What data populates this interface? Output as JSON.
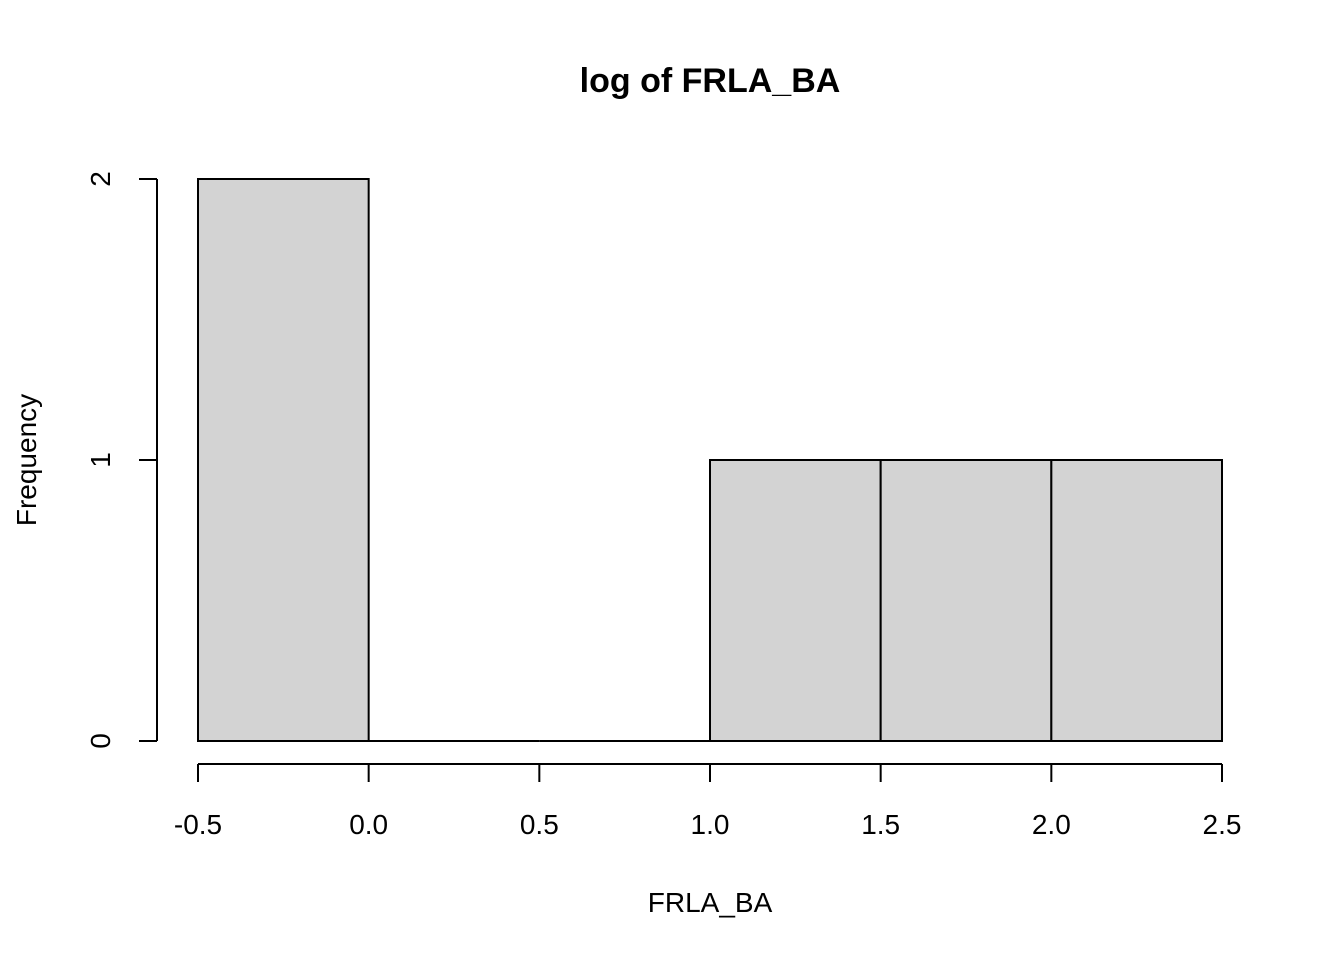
{
  "chart_data": {
    "type": "bar",
    "title": "log of FRLA_BA",
    "xlabel": "FRLA_BA",
    "ylabel": "Frequency",
    "bins": [
      {
        "x0": -0.5,
        "x1": 0.0,
        "count": 2
      },
      {
        "x0": 0.0,
        "x1": 0.5,
        "count": 0
      },
      {
        "x0": 0.5,
        "x1": 1.0,
        "count": 0
      },
      {
        "x0": 1.0,
        "x1": 1.5,
        "count": 1
      },
      {
        "x0": 1.5,
        "x1": 2.0,
        "count": 1
      },
      {
        "x0": 2.0,
        "x1": 2.5,
        "count": 1
      }
    ],
    "xticks": [
      "-0.5",
      "0.0",
      "0.5",
      "1.0",
      "1.5",
      "2.0",
      "2.5"
    ],
    "yticks": [
      "0",
      "1",
      "2"
    ],
    "xlim": [
      -0.5,
      2.5
    ],
    "ylim": [
      0,
      2
    ],
    "grid": false,
    "bar_fill": "#d3d3d3",
    "bar_stroke": "#000000"
  }
}
